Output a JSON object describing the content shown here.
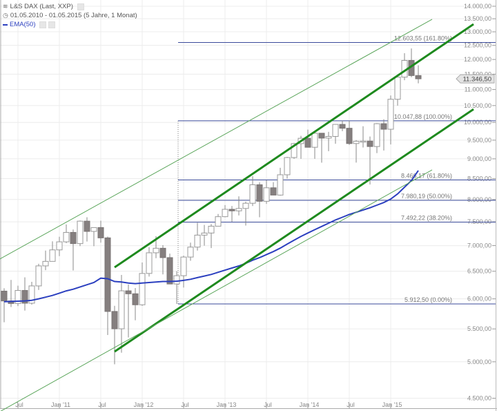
{
  "legend": {
    "instrument": "L&S DAX (Last, XXP)",
    "range": "01.05.2010 - 01.05.2015 (5 Jahre, 1 Monat)",
    "indicator": "EMA(50)",
    "instrument_icon": "chart-type-icon",
    "range_icon": "clock-icon"
  },
  "chart_data": {
    "type": "candlestick",
    "title": "",
    "y_scale": "log",
    "ylim": [
      4400,
      14100
    ],
    "grid": true,
    "colors": {
      "up_fill": "#ffffff",
      "down_fill": "#857f7f",
      "wick": "#888888",
      "ema": "#2b3fbf",
      "channel": "#1e8a1e",
      "fib": "#3a4a9a"
    },
    "y_ticks": [
      "14.000,00",
      "13.500,00",
      "13.000,00",
      "12.500,00",
      "12.000,00",
      "11.500,00",
      "11.000,00",
      "10.500,00",
      "10.000,00",
      "9.500,00",
      "9.000,00",
      "8.500,00",
      "8.000,00",
      "7.500,00",
      "7.000,00",
      "6.500,00",
      "6.000,00",
      "5.500,00",
      "5.000,00",
      "4.500,00"
    ],
    "y_tick_values": [
      14000,
      13500,
      13000,
      12500,
      12000,
      11500,
      11000,
      10500,
      10000,
      9500,
      9000,
      8500,
      8000,
      7500,
      7000,
      6500,
      6000,
      5500,
      5000,
      4500
    ],
    "x_ticks": [
      {
        "date": "2010-07",
        "label": "Jul"
      },
      {
        "date": "2011-01",
        "label": "Jan '11"
      },
      {
        "date": "2011-07",
        "label": "Jul"
      },
      {
        "date": "2012-01",
        "label": "Jan '12"
      },
      {
        "date": "2012-07",
        "label": "Jul"
      },
      {
        "date": "2013-01",
        "label": "Jan '13"
      },
      {
        "date": "2013-07",
        "label": "Jul"
      },
      {
        "date": "2014-01",
        "label": "Jan '14"
      },
      {
        "date": "2014-07",
        "label": "Jul"
      },
      {
        "date": "2015-01",
        "label": "Jan '15"
      }
    ],
    "last_price": {
      "value": 11346.5,
      "label": "11.346,50"
    },
    "candles": [
      {
        "date": "2010-05",
        "open": 6136,
        "high": 6186,
        "low": 5607,
        "close": 5964
      },
      {
        "date": "2010-06",
        "open": 5964,
        "high": 6338,
        "low": 5860,
        "close": 5920
      },
      {
        "date": "2010-07",
        "open": 5920,
        "high": 6233,
        "low": 5876,
        "close": 6148
      },
      {
        "date": "2010-08",
        "open": 6148,
        "high": 6386,
        "low": 5800,
        "close": 5925
      },
      {
        "date": "2010-09",
        "open": 5925,
        "high": 6303,
        "low": 5900,
        "close": 6229
      },
      {
        "date": "2010-10",
        "open": 6229,
        "high": 6641,
        "low": 6157,
        "close": 6601
      },
      {
        "date": "2010-11",
        "open": 6601,
        "high": 6901,
        "low": 6519,
        "close": 6688
      },
      {
        "date": "2010-12",
        "open": 6688,
        "high": 7087,
        "low": 6688,
        "close": 6914
      },
      {
        "date": "2011-01",
        "open": 6914,
        "high": 7182,
        "low": 6791,
        "close": 7077
      },
      {
        "date": "2011-02",
        "open": 7077,
        "high": 7441,
        "low": 7050,
        "close": 7273
      },
      {
        "date": "2011-03",
        "open": 7273,
        "high": 7335,
        "low": 6514,
        "close": 7041
      },
      {
        "date": "2011-04",
        "open": 7041,
        "high": 7527,
        "low": 6991,
        "close": 7514
      },
      {
        "date": "2011-05",
        "open": 7514,
        "high": 7600,
        "low": 7083,
        "close": 7294
      },
      {
        "date": "2011-06",
        "open": 7294,
        "high": 7381,
        "low": 6989,
        "close": 7376
      },
      {
        "date": "2011-07",
        "open": 7376,
        "high": 7523,
        "low": 7060,
        "close": 7159
      },
      {
        "date": "2011-08",
        "open": 7159,
        "high": 7185,
        "low": 5404,
        "close": 5785
      },
      {
        "date": "2011-09",
        "open": 5785,
        "high": 5880,
        "low": 4965,
        "close": 5502
      },
      {
        "date": "2011-10",
        "open": 5502,
        "high": 6430,
        "low": 5133,
        "close": 6141
      },
      {
        "date": "2011-11",
        "open": 6141,
        "high": 6255,
        "low": 5366,
        "close": 6089
      },
      {
        "date": "2011-12",
        "open": 6089,
        "high": 6191,
        "low": 5640,
        "close": 5898
      },
      {
        "date": "2012-01",
        "open": 5898,
        "high": 6666,
        "low": 5880,
        "close": 6458
      },
      {
        "date": "2012-02",
        "open": 6458,
        "high": 6970,
        "low": 6400,
        "close": 6856
      },
      {
        "date": "2012-03",
        "open": 6856,
        "high": 7194,
        "low": 6750,
        "close": 6947
      },
      {
        "date": "2012-04",
        "open": 6947,
        "high": 7010,
        "low": 6440,
        "close": 6761
      },
      {
        "date": "2012-05",
        "open": 6761,
        "high": 6840,
        "low": 6259,
        "close": 6264
      },
      {
        "date": "2012-06",
        "open": 6264,
        "high": 6500,
        "low": 5913,
        "close": 6416
      },
      {
        "date": "2012-07",
        "open": 6416,
        "high": 6800,
        "low": 6200,
        "close": 6772
      },
      {
        "date": "2012-08",
        "open": 6772,
        "high": 7060,
        "low": 6700,
        "close": 6970
      },
      {
        "date": "2012-09",
        "open": 6970,
        "high": 7478,
        "low": 6900,
        "close": 7216
      },
      {
        "date": "2012-10",
        "open": 7216,
        "high": 7433,
        "low": 7000,
        "close": 7260
      },
      {
        "date": "2012-11",
        "open": 7260,
        "high": 7450,
        "low": 6950,
        "close": 7405
      },
      {
        "date": "2012-12",
        "open": 7405,
        "high": 7672,
        "low": 7400,
        "close": 7612
      },
      {
        "date": "2013-01",
        "open": 7612,
        "high": 7871,
        "low": 7600,
        "close": 7776
      },
      {
        "date": "2013-02",
        "open": 7776,
        "high": 7850,
        "low": 7500,
        "close": 7741
      },
      {
        "date": "2013-03",
        "open": 7741,
        "high": 8074,
        "low": 7640,
        "close": 7795
      },
      {
        "date": "2013-04",
        "open": 7795,
        "high": 7950,
        "low": 7419,
        "close": 7914
      },
      {
        "date": "2013-05",
        "open": 7914,
        "high": 8558,
        "low": 7850,
        "close": 8349
      },
      {
        "date": "2013-06",
        "open": 8349,
        "high": 8410,
        "low": 7600,
        "close": 7959
      },
      {
        "date": "2013-07",
        "open": 7959,
        "high": 8460,
        "low": 7900,
        "close": 8276
      },
      {
        "date": "2013-08",
        "open": 8276,
        "high": 8411,
        "low": 8100,
        "close": 8103
      },
      {
        "date": "2013-09",
        "open": 8103,
        "high": 8770,
        "low": 8090,
        "close": 8594
      },
      {
        "date": "2013-10",
        "open": 8594,
        "high": 9050,
        "low": 8500,
        "close": 9033
      },
      {
        "date": "2013-11",
        "open": 9033,
        "high": 9424,
        "low": 9000,
        "close": 9405
      },
      {
        "date": "2013-12",
        "open": 9405,
        "high": 9620,
        "low": 9000,
        "close": 9552
      },
      {
        "date": "2014-01",
        "open": 9552,
        "high": 9794,
        "low": 9300,
        "close": 9306
      },
      {
        "date": "2014-02",
        "open": 9306,
        "high": 9720,
        "low": 9000,
        "close": 9692
      },
      {
        "date": "2014-03",
        "open": 9692,
        "high": 9700,
        "low": 8900,
        "close": 9556
      },
      {
        "date": "2014-04",
        "open": 9556,
        "high": 9730,
        "low": 9200,
        "close": 9603
      },
      {
        "date": "2014-05",
        "open": 9603,
        "high": 9950,
        "low": 9400,
        "close": 9943
      },
      {
        "date": "2014-06",
        "open": 9943,
        "high": 10050,
        "low": 9750,
        "close": 9833
      },
      {
        "date": "2014-07",
        "open": 9833,
        "high": 10051,
        "low": 9370,
        "close": 9407
      },
      {
        "date": "2014-08",
        "open": 9407,
        "high": 9500,
        "low": 8903,
        "close": 9470
      },
      {
        "date": "2014-09",
        "open": 9470,
        "high": 9890,
        "low": 9300,
        "close": 9474
      },
      {
        "date": "2014-10",
        "open": 9474,
        "high": 9600,
        "low": 8355,
        "close": 9326
      },
      {
        "date": "2014-11",
        "open": 9326,
        "high": 9980,
        "low": 9150,
        "close": 9963
      },
      {
        "date": "2014-12",
        "open": 9963,
        "high": 10093,
        "low": 9219,
        "close": 9805
      },
      {
        "date": "2015-01",
        "open": 9805,
        "high": 10810,
        "low": 9382,
        "close": 10694
      },
      {
        "date": "2015-02",
        "open": 10694,
        "high": 11401,
        "low": 10500,
        "close": 11401
      },
      {
        "date": "2015-03",
        "open": 11401,
        "high": 12219,
        "low": 11300,
        "close": 11966
      },
      {
        "date": "2015-04",
        "open": 11966,
        "high": 12390,
        "low": 11400,
        "close": 11454
      },
      {
        "date": "2015-05",
        "open": 11454,
        "high": 11800,
        "low": 11200,
        "close": 11346.5
      }
    ],
    "ema": {
      "name": "EMA(50)",
      "values": [
        5950,
        5955,
        5960,
        5965,
        5975,
        6000,
        6030,
        6060,
        6100,
        6140,
        6170,
        6210,
        6250,
        6290,
        6370,
        6360,
        6310,
        6300,
        6280,
        6270,
        6280,
        6290,
        6300,
        6310,
        6310,
        6315,
        6330,
        6350,
        6380,
        6410,
        6440,
        6480,
        6520,
        6560,
        6600,
        6650,
        6710,
        6760,
        6820,
        6880,
        6950,
        7030,
        7110,
        7190,
        7260,
        7330,
        7400,
        7470,
        7540,
        7600,
        7660,
        7710,
        7760,
        7810,
        7870,
        7930,
        8010,
        8130,
        8290,
        8450,
        8700
      ]
    },
    "trendlines": [
      {
        "kind": "channel-thick",
        "from": {
          "date": "2011-09",
          "value": 6573
        },
        "to": {
          "date": "2016-01",
          "value": 13290
        }
      },
      {
        "kind": "channel-thick",
        "from": {
          "date": "2011-09",
          "value": 5150
        },
        "to": {
          "date": "2016-01",
          "value": 10390
        }
      },
      {
        "kind": "channel-thin",
        "from": {
          "date": "2010-04",
          "value": 6706
        },
        "to": {
          "date": "2015-07",
          "value": 13478
        }
      },
      {
        "kind": "channel-thin",
        "from": {
          "date": "2010-04",
          "value": 4310
        },
        "to": {
          "date": "2015-07",
          "value": 8717
        }
      }
    ],
    "fibonacci": {
      "start_date": "2012-06",
      "levels": [
        {
          "value": 12603.55,
          "label": "12.603,55 (161.80%)"
        },
        {
          "value": 10047.88,
          "label": "10.047,88 (100.00%)"
        },
        {
          "value": 8466.17,
          "label": "8.466,17 (61.80%)"
        },
        {
          "value": 7980.19,
          "label": "7.980,19 (50.00%)"
        },
        {
          "value": 7492.22,
          "label": "7.492,22 (38.20%)"
        },
        {
          "value": 5912.5,
          "label": "5.912,50 (0.00%)"
        }
      ]
    }
  }
}
